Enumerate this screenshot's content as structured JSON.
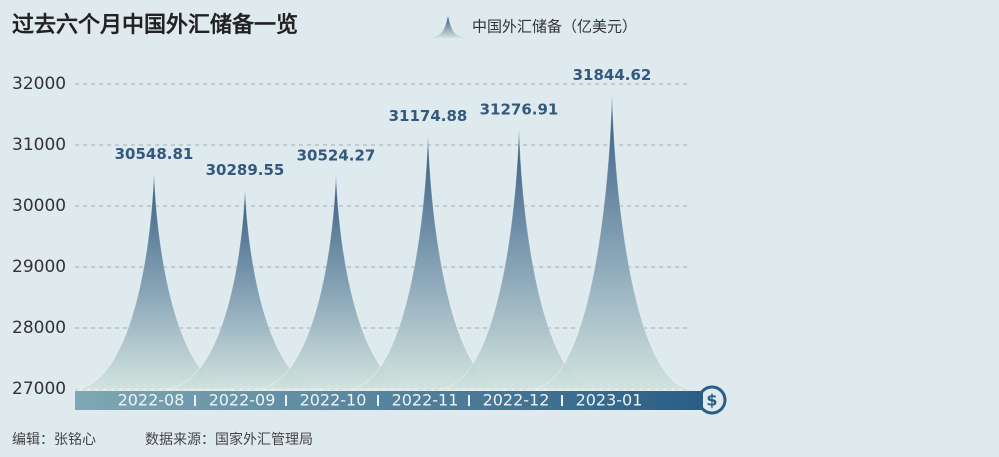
{
  "chart_data": {
    "type": "spike",
    "title": "过去六个月中国外汇储备一览",
    "legend": "中国外汇储备（亿美元）",
    "categories": [
      "2022-08",
      "2022-09",
      "2022-10",
      "2022-11",
      "2022-12",
      "2023-01"
    ],
    "values": [
      30548.81,
      30289.55,
      30524.27,
      31174.88,
      31276.91,
      31844.62
    ],
    "color": "#33597f",
    "ylim": [
      27000,
      32000
    ],
    "yticks": [
      27000,
      28000,
      29000,
      30000,
      31000,
      32000
    ],
    "grid": true
  },
  "footer": {
    "editor": "编辑：张铭心",
    "source": "数据来源：国家外汇管理局"
  }
}
